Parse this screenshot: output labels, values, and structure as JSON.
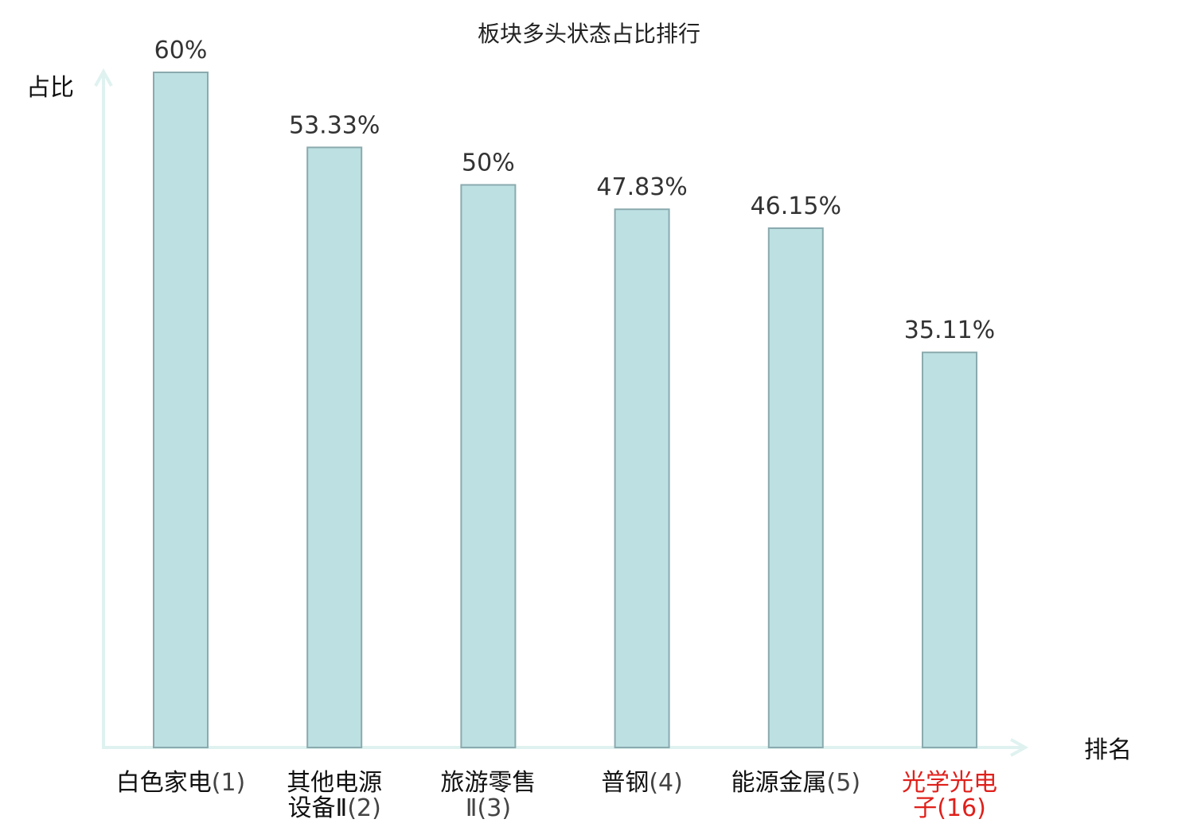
{
  "chart_data": {
    "type": "bar",
    "title": "板块多头状态占比排行",
    "ylabel": "占比",
    "xlabel": "排名",
    "ylim": [
      0,
      60
    ],
    "grid": false,
    "legend": "none",
    "categories": [
      {
        "lines": [
          "白色家电"
        ],
        "rank_line": 0,
        "rank": "(1)"
      },
      {
        "lines": [
          "其他电源",
          "设备Ⅱ"
        ],
        "rank_line": 1,
        "rank": "(2)"
      },
      {
        "lines": [
          "旅游零售",
          ""
        ],
        "rank_line": 1,
        "rank": "Ⅱ(3)"
      },
      {
        "lines": [
          "普钢"
        ],
        "rank_line": 0,
        "rank": "(4)"
      },
      {
        "lines": [
          "能源金属"
        ],
        "rank_line": 0,
        "rank": "(5)"
      },
      {
        "lines": [
          "光学光电",
          "子"
        ],
        "rank_line": 1,
        "rank": "(16)",
        "highlight": true
      }
    ],
    "values": [
      60,
      53.33,
      50,
      47.83,
      46.15,
      35.11
    ],
    "value_labels": [
      "60%",
      "53.33%",
      "50%",
      "47.83%",
      "46.15%",
      "35.11%"
    ],
    "colors": {
      "bar_fill": "#bde0e3",
      "bar_stroke": "#8aaaae",
      "axis": "#dff2ef",
      "highlight": "#e0201b"
    }
  }
}
